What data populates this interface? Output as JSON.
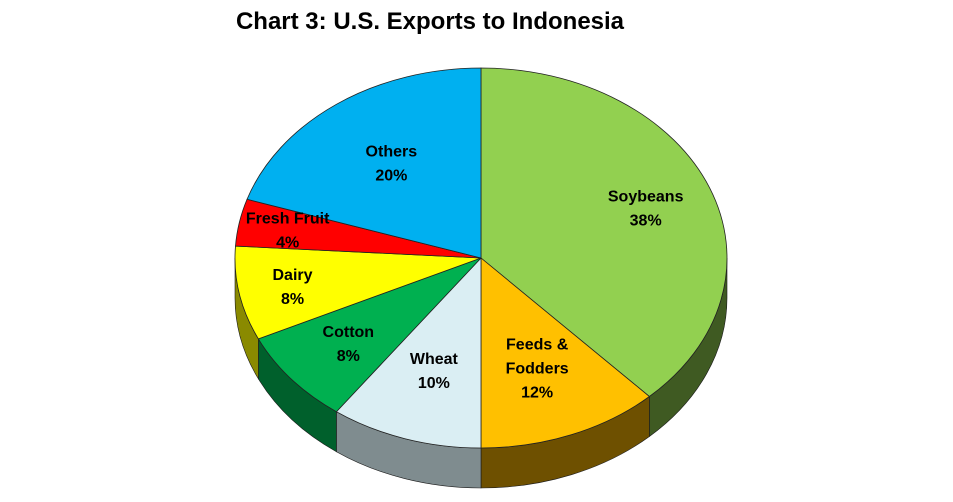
{
  "chart_data": {
    "type": "pie",
    "style": "3d",
    "title": "Chart 3: U.S. Exports to Indonesia",
    "slices": [
      {
        "name": "Soybeans",
        "label_lines": [
          "Soybeans",
          "38%"
        ],
        "value": 38,
        "color": "#92D050",
        "side_color": "#3F5A22"
      },
      {
        "name": "Feeds & Fodders",
        "label_lines": [
          "Feeds &",
          "Fodders",
          "12%"
        ],
        "value": 12,
        "color": "#FFC000",
        "side_color": "#6E5000"
      },
      {
        "name": "Wheat",
        "label_lines": [
          "Wheat",
          "10%"
        ],
        "value": 10,
        "color": "#DAEEF3",
        "side_color": "#7F8C8F"
      },
      {
        "name": "Cotton",
        "label_lines": [
          "Cotton",
          "8%"
        ],
        "value": 8,
        "color": "#00B050",
        "side_color": "#00602C"
      },
      {
        "name": "Dairy",
        "label_lines": [
          "Dairy",
          "8%"
        ],
        "value": 8,
        "color": "#FFFF00",
        "side_color": "#8A8A00"
      },
      {
        "name": "Fresh Fruit",
        "label_lines": [
          "Fresh Fruit",
          "4%"
        ],
        "value": 4,
        "color": "#FF0000",
        "side_color": "#7A0000"
      },
      {
        "name": "Others",
        "label_lines": [
          "Others",
          "20%"
        ],
        "value": 20,
        "color": "#00B0F0",
        "side_color": "#005E80"
      }
    ],
    "start": "12 o'clock",
    "direction": "clockwise",
    "legend": "none"
  }
}
